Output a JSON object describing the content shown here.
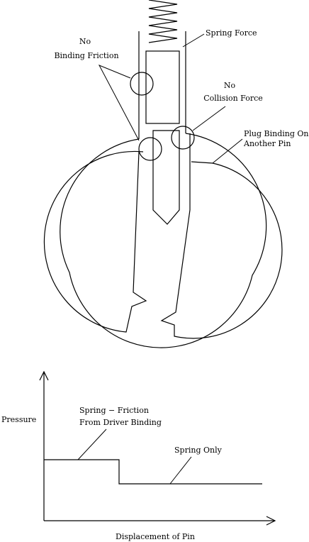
{
  "diagram": {
    "labels": {
      "no_binding_friction_line1": "No",
      "no_binding_friction_line2": "Binding Friction",
      "spring_force": "Spring Force",
      "no_collision_force_line1": "No",
      "no_collision_force_line2": "Collision Force",
      "plug_binding_line1": "Plug Binding On",
      "plug_binding_line2": "Another Pin"
    }
  },
  "graph": {
    "ylabel": "Pressure",
    "xlabel": "Displacement of Pin",
    "annotation_high_line1": "Spring − Friction",
    "annotation_high_line2": "From Driver Binding",
    "annotation_low": "Spring Only"
  }
}
